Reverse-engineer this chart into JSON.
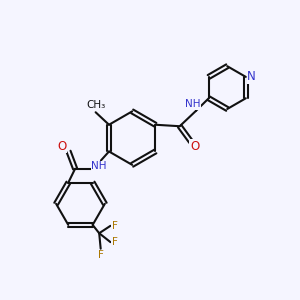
{
  "bg_color": "#f5f5ff",
  "line_color": "#111111",
  "nitrogen_color": "#3333cc",
  "oxygen_color": "#cc1111",
  "fluorine_color": "#aa7700",
  "text_color": "#111111",
  "bond_lw": 1.5,
  "font_size": 7.5,
  "xlim": [
    0,
    10
  ],
  "ylim": [
    0,
    10
  ]
}
